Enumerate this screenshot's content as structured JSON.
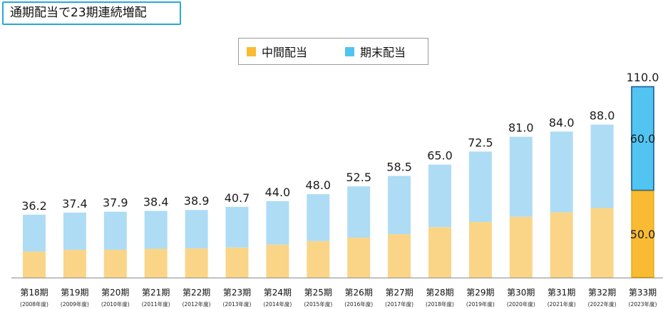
{
  "header": {
    "title": "通期配当で23期連続増配"
  },
  "chart_data": {
    "type": "bar",
    "stacked": true,
    "title": "通期配当で23期連続増配",
    "categories": [
      "第18期",
      "第19期",
      "第20期",
      "第21期",
      "第22期",
      "第23期",
      "第24期",
      "第25期",
      "第26期",
      "第27期",
      "第28期",
      "第29期",
      "第30期",
      "第31期",
      "第32期",
      "第33期"
    ],
    "sublabels": [
      "(2008年度)",
      "(2009年度)",
      "(2010年度)",
      "(2011年度)",
      "(2012年度)",
      "(2013年度)",
      "(2014年度)",
      "(2015年度)",
      "(2016年度)",
      "(2017年度)",
      "(2018年度)",
      "(2019年度)",
      "(2020年度)",
      "(2021年度)",
      "(2022年度)",
      "(2023年度)"
    ],
    "series": [
      {
        "name": "中間配当",
        "values": [
          15.0,
          16.0,
          16.0,
          16.6,
          16.8,
          17.3,
          19.0,
          21.0,
          23.0,
          25.0,
          29.0,
          32.0,
          35.0,
          37.5,
          40.0,
          50.0
        ],
        "color": "#fad587",
        "highlight_color": "#f8bb33"
      },
      {
        "name": "期末配当",
        "values": [
          21.2,
          21.4,
          21.9,
          21.8,
          22.1,
          23.4,
          25.0,
          27.0,
          29.5,
          33.5,
          36.0,
          40.5,
          46.0,
          46.5,
          48.0,
          60.0
        ],
        "color": "#aedcf5",
        "highlight_color": "#52c4f2"
      }
    ],
    "totals": [
      36.2,
      37.4,
      37.9,
      38.4,
      38.9,
      40.7,
      44.0,
      48.0,
      52.5,
      58.5,
      65.0,
      72.5,
      81.0,
      84.0,
      88.0,
      110.0
    ],
    "total_labels": [
      "36.2",
      "37.4",
      "37.9",
      "38.4",
      "38.9",
      "40.7",
      "44.0",
      "48.0",
      "52.5",
      "58.5",
      "65.0",
      "72.5",
      "81.0",
      "84.0",
      "88.0",
      "110.0"
    ],
    "highlight_index": 15,
    "highlight_segment_labels": [
      "50.0",
      "60.0"
    ],
    "highlight_outline_color": "#1a5b9a",
    "ylim": [
      0,
      110
    ],
    "xlabel": "",
    "ylabel": "",
    "grid": false,
    "legend_position": "top-center"
  }
}
